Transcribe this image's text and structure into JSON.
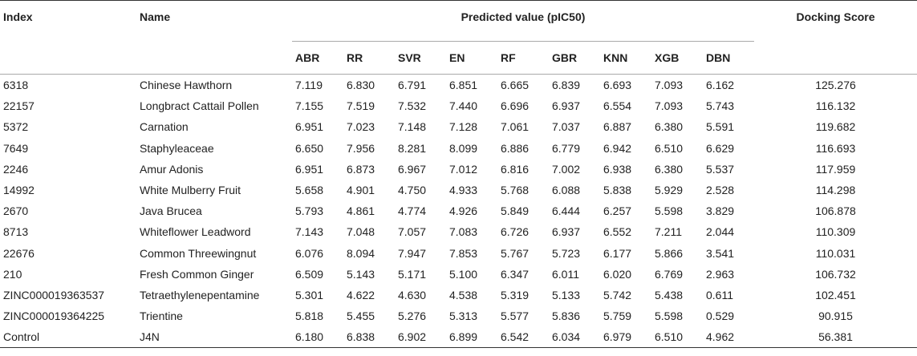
{
  "table": {
    "headers": {
      "index": "Index",
      "name": "Name",
      "predicted_group": "Predicted value (pIC50)",
      "docking": "Docking Score",
      "models": [
        "ABR",
        "RR",
        "SVR",
        "EN",
        "RF",
        "GBR",
        "KNN",
        "XGB",
        "DBN"
      ]
    },
    "rows": [
      {
        "index": "6318",
        "name": "Chinese Hawthorn",
        "values": [
          "7.119",
          "6.830",
          "6.791",
          "6.851",
          "6.665",
          "6.839",
          "6.693",
          "7.093",
          "6.162"
        ],
        "score": "125.276"
      },
      {
        "index": "22157",
        "name": "Longbract Cattail Pollen",
        "values": [
          "7.155",
          "7.519",
          "7.532",
          "7.440",
          "6.696",
          "6.937",
          "6.554",
          "7.093",
          "5.743"
        ],
        "score": "116.132"
      },
      {
        "index": "5372",
        "name": "Carnation",
        "values": [
          "6.951",
          "7.023",
          "7.148",
          "7.128",
          "7.061",
          "7.037",
          "6.887",
          "6.380",
          "5.591"
        ],
        "score": "119.682"
      },
      {
        "index": "7649",
        "name": "Staphyleaceae",
        "values": [
          "6.650",
          "7.956",
          "8.281",
          "8.099",
          "6.886",
          "6.779",
          "6.942",
          "6.510",
          "6.629"
        ],
        "score": "116.693"
      },
      {
        "index": "2246",
        "name": "Amur Adonis",
        "values": [
          "6.951",
          "6.873",
          "6.967",
          "7.012",
          "6.816",
          "7.002",
          "6.938",
          "6.380",
          "5.537"
        ],
        "score": "117.959"
      },
      {
        "index": "14992",
        "name": "White Mulberry Fruit",
        "values": [
          "5.658",
          "4.901",
          "4.750",
          "4.933",
          "5.768",
          "6.088",
          "5.838",
          "5.929",
          "2.528"
        ],
        "score": "114.298"
      },
      {
        "index": "2670",
        "name": "Java Brucea",
        "values": [
          "5.793",
          "4.861",
          "4.774",
          "4.926",
          "5.849",
          "6.444",
          "6.257",
          "5.598",
          "3.829"
        ],
        "score": "106.878"
      },
      {
        "index": "8713",
        "name": "Whiteflower Leadword",
        "values": [
          "7.143",
          "7.048",
          "7.057",
          "7.083",
          "6.726",
          "6.937",
          "6.552",
          "7.211",
          "2.044"
        ],
        "score": "110.309"
      },
      {
        "index": "22676",
        "name": "Common Threewingnut",
        "values": [
          "6.076",
          "8.094",
          "7.947",
          "7.853",
          "5.767",
          "5.723",
          "6.177",
          "5.866",
          "3.541"
        ],
        "score": "110.031"
      },
      {
        "index": "210",
        "name": "Fresh Common Ginger",
        "values": [
          "6.509",
          "5.143",
          "5.171",
          "5.100",
          "6.347",
          "6.011",
          "6.020",
          "6.769",
          "2.963"
        ],
        "score": "106.732"
      },
      {
        "index": "ZINC000019363537",
        "name": "Tetraethylenepentamine",
        "values": [
          "5.301",
          "4.622",
          "4.630",
          "4.538",
          "5.319",
          "5.133",
          "5.742",
          "5.438",
          "0.611"
        ],
        "score": "102.451"
      },
      {
        "index": "ZINC000019364225",
        "name": "Trientine",
        "values": [
          "5.818",
          "5.455",
          "5.276",
          "5.313",
          "5.577",
          "5.836",
          "5.759",
          "5.598",
          "0.529"
        ],
        "score": "90.915"
      },
      {
        "index": "Control",
        "name": "J4N",
        "values": [
          "6.180",
          "6.838",
          "6.902",
          "6.899",
          "6.542",
          "6.034",
          "6.979",
          "6.510",
          "4.962"
        ],
        "score": "56.381"
      }
    ]
  }
}
